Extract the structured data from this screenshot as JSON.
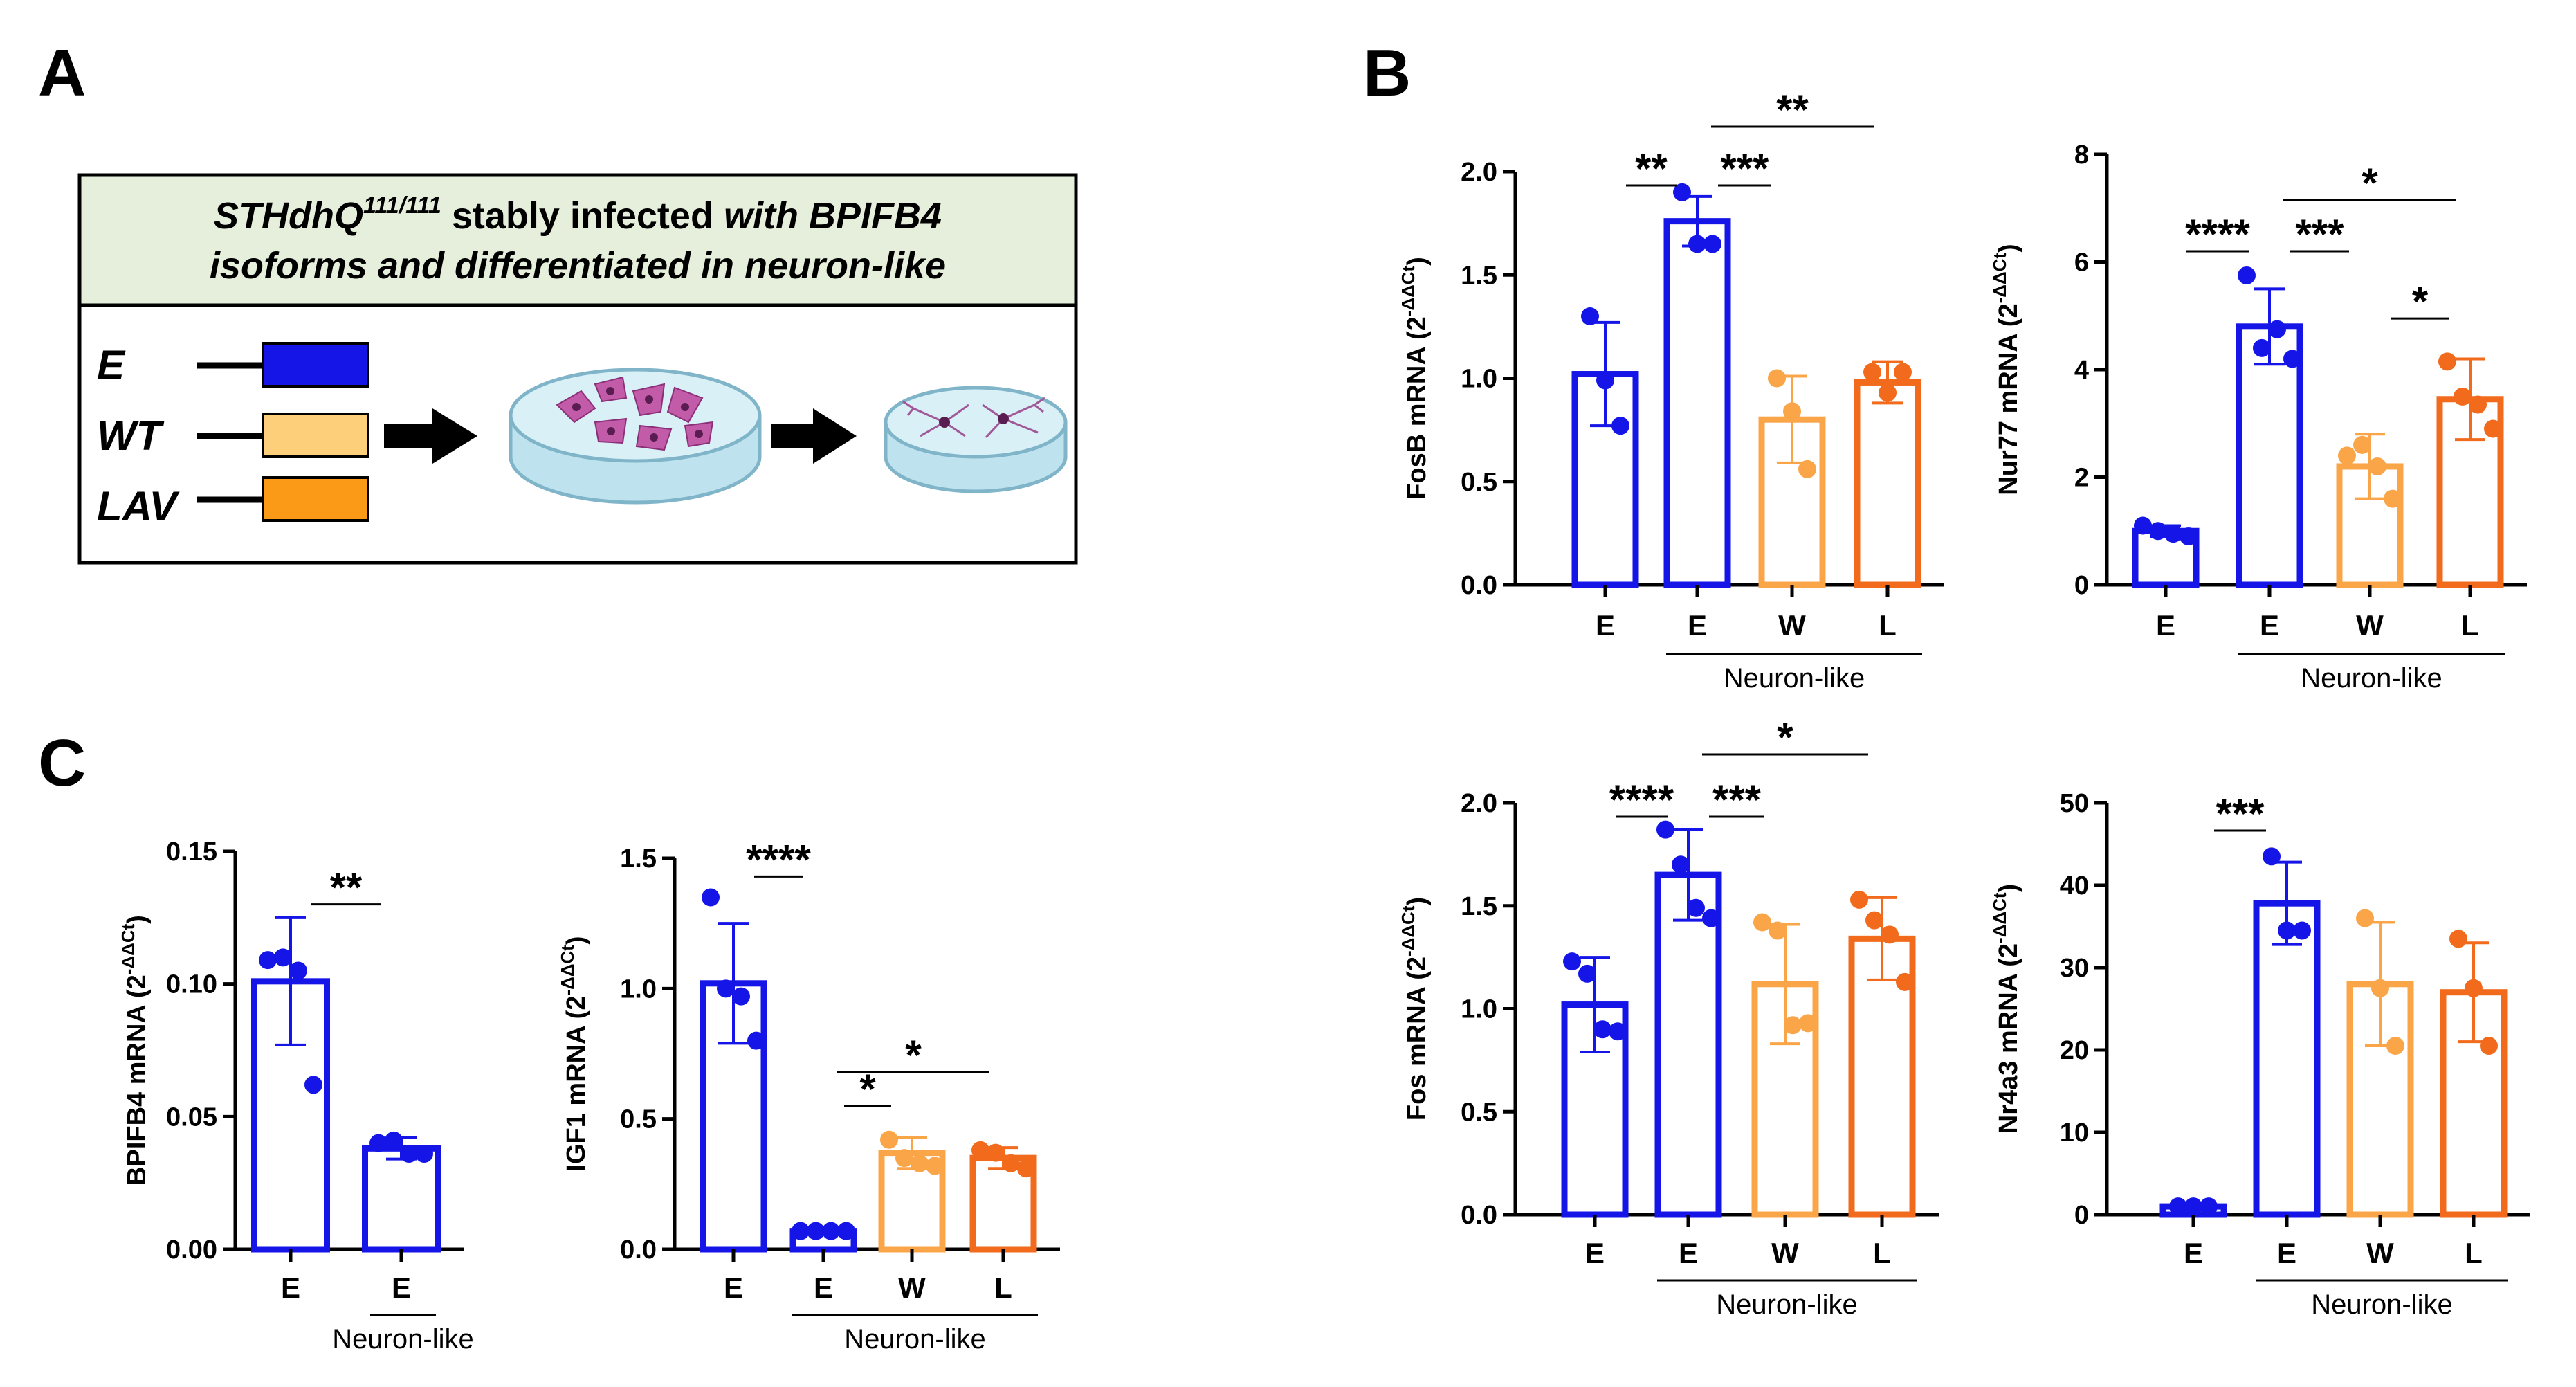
{
  "panels": {
    "a": "A",
    "b": "B",
    "c": "C"
  },
  "schematic": {
    "line1_italic": "STHdhQ",
    "line1_sup": "111/111",
    "line1_mid": " stably infected ",
    "line1_end": "with BPIFB4",
    "line2": "isoforms and differentiated in neuron-like",
    "labels": [
      "E",
      "WT",
      "LAV"
    ],
    "colors": [
      "#1515e8",
      "#fdcf7a",
      "#fb9a16"
    ],
    "header_bg": "#e6efdb"
  },
  "colors": {
    "E_undiff": "#1515e8",
    "E": "#1515e8",
    "W": "#fba549",
    "L": "#f26a1b"
  },
  "group_label": "Neuron-like",
  "y_suffix": "2",
  "y_exp": "-ΔΔCt",
  "chart_data": [
    {
      "id": "fosb",
      "type": "bar",
      "ylabel": "FosB mRNA",
      "categories": [
        "E",
        "E",
        "W",
        "L"
      ],
      "values": [
        1.02,
        1.76,
        0.8,
        0.98
      ],
      "errors": [
        0.25,
        0.12,
        0.21,
        0.1
      ],
      "points": [
        [
          1.3,
          0.99,
          0.77
        ],
        [
          1.9,
          1.65,
          1.65
        ],
        [
          1.0,
          0.84,
          0.56
        ],
        [
          1.03,
          0.93,
          1.03
        ]
      ],
      "ylim": [
        0,
        2.0
      ],
      "yticks": [
        "0.0",
        "0.5",
        "1.0",
        "1.5",
        "2.0"
      ],
      "significance": [
        {
          "from": 0,
          "to": 1,
          "label": "**"
        },
        {
          "from": 1,
          "to": 2,
          "label": "***"
        },
        {
          "from": 1,
          "to": 3,
          "label": "**"
        }
      ]
    },
    {
      "id": "nur77",
      "type": "bar",
      "ylabel": "Nur77 mRNA",
      "categories": [
        "E",
        "E",
        "W",
        "L"
      ],
      "values": [
        1.0,
        4.8,
        2.2,
        3.45
      ],
      "errors": [
        0.1,
        0.7,
        0.6,
        0.75
      ],
      "points": [
        [
          1.1,
          1.0,
          0.95,
          0.9
        ],
        [
          5.75,
          4.4,
          4.75,
          4.2
        ],
        [
          2.4,
          2.6,
          2.2,
          1.6
        ],
        [
          4.15,
          3.5,
          3.35,
          2.9
        ]
      ],
      "ylim": [
        0,
        8
      ],
      "yticks": [
        "0",
        "2",
        "4",
        "6",
        "8"
      ],
      "significance": [
        {
          "from": 0,
          "to": 1,
          "label": "****"
        },
        {
          "from": 1,
          "to": 2,
          "label": "***"
        },
        {
          "from": 1,
          "to": 3,
          "label": "*"
        },
        {
          "from": 2,
          "to": 3,
          "label": "*"
        }
      ]
    },
    {
      "id": "fos",
      "type": "bar",
      "ylabel": "Fos mRNA",
      "categories": [
        "E",
        "E",
        "W",
        "L"
      ],
      "values": [
        1.02,
        1.65,
        1.12,
        1.34
      ],
      "errors": [
        0.23,
        0.22,
        0.29,
        0.2
      ],
      "points": [
        [
          1.23,
          1.17,
          0.9,
          0.89
        ],
        [
          1.87,
          1.7,
          1.49,
          1.44
        ],
        [
          1.42,
          1.38,
          0.92,
          0.93
        ],
        [
          1.53,
          1.43,
          1.36,
          1.13
        ]
      ],
      "ylim": [
        0,
        2.0
      ],
      "yticks": [
        "0.0",
        "0.5",
        "1.0",
        "1.5",
        "2.0"
      ],
      "significance": [
        {
          "from": 0,
          "to": 1,
          "label": "****"
        },
        {
          "from": 1,
          "to": 2,
          "label": "***"
        },
        {
          "from": 1,
          "to": 3,
          "label": "*"
        }
      ]
    },
    {
      "id": "nr4a3",
      "type": "bar",
      "ylabel": "Nr4a3 mRNA",
      "categories": [
        "E",
        "E",
        "W",
        "L"
      ],
      "values": [
        1.0,
        37.8,
        28.0,
        27.0
      ],
      "errors": [
        0.1,
        5.0,
        7.5,
        6.0
      ],
      "points": [
        [
          1.0,
          1.0,
          1.0
        ],
        [
          43.5,
          34.5,
          34.5
        ],
        [
          36.0,
          27.5,
          20.5
        ],
        [
          33.5,
          27.5,
          20.5
        ]
      ],
      "ylim": [
        0,
        50
      ],
      "yticks": [
        "0",
        "10",
        "20",
        "30",
        "40",
        "50"
      ],
      "significance": [
        {
          "from": 0,
          "to": 1,
          "label": "***"
        }
      ]
    },
    {
      "id": "bpifb4",
      "type": "bar",
      "ylabel": "BPIFB4 mRNA",
      "categories": [
        "E",
        "E"
      ],
      "values": [
        0.101,
        0.038
      ],
      "errors": [
        0.024,
        0.004
      ],
      "points": [
        [
          0.109,
          0.11,
          0.105,
          0.062
        ],
        [
          0.04,
          0.041,
          0.036,
          0.036
        ]
      ],
      "ylim": [
        0,
        0.15
      ],
      "yticks": [
        "0.00",
        "0.05",
        "0.10",
        "0.15"
      ],
      "significance": [
        {
          "from": 0,
          "to": 1,
          "label": "**"
        }
      ]
    },
    {
      "id": "igf1",
      "type": "bar",
      "ylabel": "IGF1 mRNA",
      "categories": [
        "E",
        "E",
        "W",
        "L"
      ],
      "values": [
        1.02,
        0.07,
        0.37,
        0.35
      ],
      "errors": [
        0.23,
        0.01,
        0.06,
        0.04
      ],
      "points": [
        [
          1.35,
          1.0,
          0.97,
          0.8
        ],
        [
          0.07,
          0.07,
          0.07,
          0.07
        ],
        [
          0.42,
          0.35,
          0.33,
          0.32
        ],
        [
          0.38,
          0.37,
          0.33,
          0.31
        ]
      ],
      "ylim": [
        0,
        1.5
      ],
      "yticks": [
        "0.0",
        "0.5",
        "1.0",
        "1.5"
      ],
      "significance": [
        {
          "from": 0,
          "to": 1,
          "label": "****"
        },
        {
          "from": 1,
          "to": 2,
          "label": "*"
        },
        {
          "from": 1,
          "to": 3,
          "label": "*"
        }
      ]
    }
  ]
}
